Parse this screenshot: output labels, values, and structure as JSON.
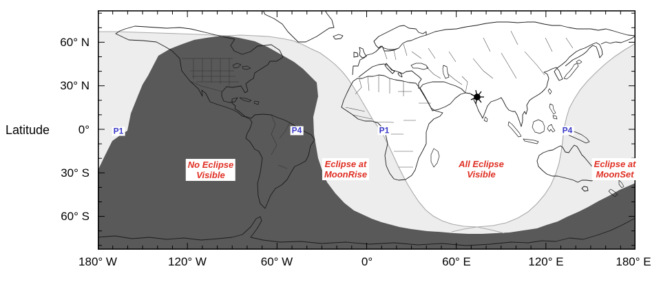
{
  "figure": {
    "kind": "lunar-eclipse-visibility-world-map",
    "marker": "greatest-eclipse-sublunar-star"
  },
  "colors": {
    "no_eclipse_fill": "#595959",
    "partial_zone_fill": "#ededed",
    "all_visible_fill": "#ffffff",
    "contour_line": "#a8a8a8",
    "coastline": "#1a1a1a",
    "zone_label_red": "#df2f23",
    "contact_label_blue": "#3838c8",
    "axis_black": "#000000"
  },
  "y_axis": {
    "title": "Latitude",
    "tick_labels": [
      "60° N",
      "30° N",
      "0°",
      "30° S",
      "60° S"
    ]
  },
  "x_axis": {
    "tick_labels": [
      "180° W",
      "120° W",
      "60° W",
      "0°",
      "60° E",
      "120° E",
      "180° E"
    ]
  },
  "zones": [
    {
      "line1": "No Eclipse",
      "line2": "Visible"
    },
    {
      "line1": "Eclipse at",
      "line2": "MoonRise"
    },
    {
      "line1": "All Eclipse",
      "line2": "Visible"
    },
    {
      "line1": "Eclipse at",
      "line2": "MoonSet"
    }
  ],
  "contacts": [
    {
      "label": "P1"
    },
    {
      "label": "P4"
    },
    {
      "label": "P1"
    },
    {
      "label": "P4"
    }
  ]
}
